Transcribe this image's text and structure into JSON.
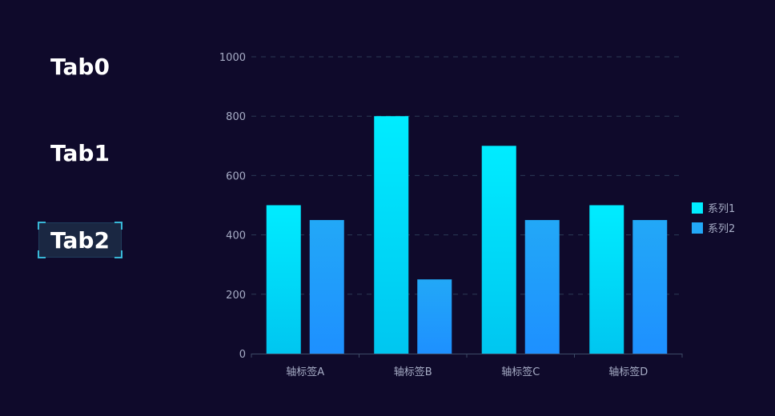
{
  "tabs": [
    {
      "label": "Tab0",
      "active": false
    },
    {
      "label": "Tab1",
      "active": false
    },
    {
      "label": "Tab2",
      "active": true
    }
  ],
  "colors": {
    "background": "#0f0a2b",
    "series1_top": "#00ecff",
    "series1_bottom": "#00c6f0",
    "series2_top": "#22a8f7",
    "series2_bottom": "#1e90ff",
    "grid": "#2b3a55",
    "axis": "#3c4a66"
  },
  "chart_data": {
    "type": "bar",
    "categories": [
      "轴标签A",
      "轴标签B",
      "轴标签C",
      "轴标签D"
    ],
    "series": [
      {
        "name": "系列1",
        "values": [
          500,
          800,
          700,
          500
        ]
      },
      {
        "name": "系列2",
        "values": [
          450,
          250,
          450,
          450
        ]
      }
    ],
    "yticks": [
      "0",
      "200",
      "400",
      "600",
      "800",
      "1000"
    ],
    "ylim": [
      0,
      1000
    ],
    "grid": true,
    "grid_style": "dashed",
    "legend_position": "right"
  }
}
